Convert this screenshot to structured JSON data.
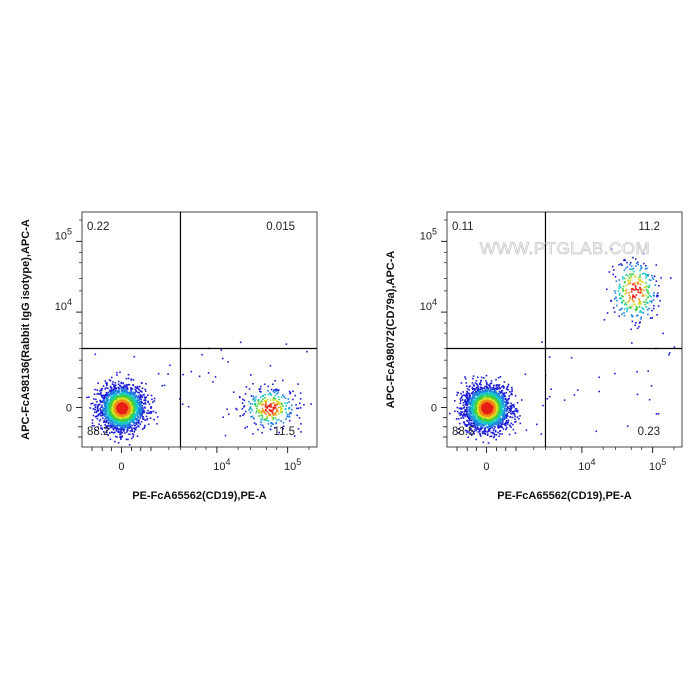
{
  "watermark": "WWW.PTGLAB.COM",
  "colors": {
    "density": [
      "#1c1cd6",
      "#1f7fe0",
      "#16c8c8",
      "#3fcf3f",
      "#d8e020",
      "#f08a18",
      "#e82018"
    ],
    "gate": "#000000"
  },
  "chart_data": [
    {
      "type": "scatter",
      "xlabel": "PE-FcA65562(CD19),PE-A",
      "ylabel": "APC-FcA98136(Rabbit IgG isotype),APC-A",
      "x_scale": "biexponential",
      "y_scale": "biexponential",
      "x_ticks": [
        {
          "value": 0,
          "label": "0"
        },
        {
          "value": 10000,
          "label": "10^4"
        },
        {
          "value": 100000,
          "label": "10^5"
        }
      ],
      "y_ticks": [
        {
          "value": 0,
          "label": "0"
        },
        {
          "value": 10000,
          "label": "10^4"
        },
        {
          "value": 100000,
          "label": "10^5"
        }
      ],
      "gate": {
        "x": 3000,
        "y": 3000
      },
      "quadrants": {
        "top_left": "0.22",
        "top_right": "0.015",
        "bottom_left": "88.2",
        "bottom_right": "11.5"
      },
      "populations": [
        {
          "cx": 0,
          "cy": 0,
          "fraction": 0.882
        },
        {
          "cx": 55000,
          "cy": 0,
          "fraction": 0.115
        }
      ]
    },
    {
      "type": "scatter",
      "xlabel": "PE-FcA65562(CD19),PE-A",
      "ylabel": "APC-FcA98072(CD79a),APC-A",
      "x_scale": "biexponential",
      "y_scale": "biexponential",
      "x_ticks": [
        {
          "value": 0,
          "label": "0"
        },
        {
          "value": 10000,
          "label": "10^4"
        },
        {
          "value": 100000,
          "label": "10^5"
        }
      ],
      "y_ticks": [
        {
          "value": 0,
          "label": "0"
        },
        {
          "value": 10000,
          "label": "10^4"
        },
        {
          "value": 100000,
          "label": "10^5"
        }
      ],
      "gate": {
        "x": 3000,
        "y": 3000
      },
      "quadrants": {
        "top_left": "0.11",
        "top_right": "11.2",
        "bottom_left": "88.5",
        "bottom_right": "0.23"
      },
      "populations": [
        {
          "cx": 0,
          "cy": 0,
          "fraction": 0.885
        },
        {
          "cx": 55000,
          "cy": 20000,
          "fraction": 0.112
        }
      ]
    }
  ]
}
